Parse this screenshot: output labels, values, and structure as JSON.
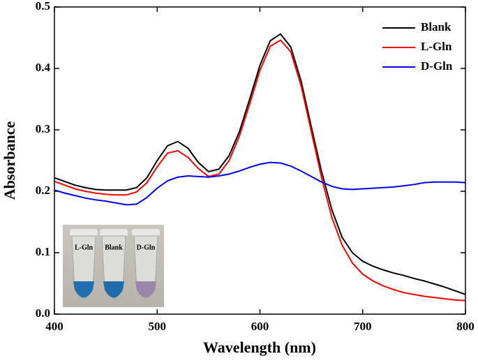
{
  "chart_data": {
    "type": "line",
    "xlabel": "Wavelength (nm)",
    "ylabel": "Absorbance",
    "x": [
      400,
      410,
      420,
      430,
      440,
      450,
      460,
      470,
      480,
      490,
      500,
      510,
      520,
      530,
      540,
      550,
      560,
      570,
      580,
      590,
      600,
      610,
      620,
      630,
      640,
      650,
      660,
      670,
      680,
      690,
      700,
      710,
      720,
      730,
      740,
      750,
      760,
      770,
      780,
      790,
      800
    ],
    "series": [
      {
        "name": "Blank",
        "color": "#000000",
        "values": [
          0.222,
          0.216,
          0.21,
          0.206,
          0.203,
          0.202,
          0.202,
          0.202,
          0.206,
          0.222,
          0.25,
          0.274,
          0.281,
          0.27,
          0.247,
          0.232,
          0.236,
          0.258,
          0.297,
          0.35,
          0.405,
          0.445,
          0.456,
          0.435,
          0.38,
          0.305,
          0.232,
          0.17,
          0.125,
          0.1,
          0.086,
          0.078,
          0.072,
          0.067,
          0.063,
          0.058,
          0.054,
          0.049,
          0.044,
          0.038,
          0.032
        ]
      },
      {
        "name": "L-Gln",
        "color": "#ff0000",
        "values": [
          0.216,
          0.21,
          0.204,
          0.2,
          0.197,
          0.195,
          0.194,
          0.194,
          0.199,
          0.214,
          0.24,
          0.262,
          0.266,
          0.255,
          0.237,
          0.224,
          0.228,
          0.25,
          0.29,
          0.342,
          0.397,
          0.436,
          0.446,
          0.427,
          0.372,
          0.297,
          0.222,
          0.157,
          0.112,
          0.083,
          0.065,
          0.054,
          0.046,
          0.04,
          0.035,
          0.032,
          0.029,
          0.027,
          0.025,
          0.023,
          0.022
        ]
      },
      {
        "name": "D-Gln",
        "color": "#0000ff",
        "values": [
          0.202,
          0.197,
          0.193,
          0.189,
          0.186,
          0.184,
          0.181,
          0.178,
          0.179,
          0.19,
          0.205,
          0.217,
          0.223,
          0.225,
          0.224,
          0.223,
          0.225,
          0.228,
          0.233,
          0.239,
          0.244,
          0.247,
          0.246,
          0.241,
          0.233,
          0.224,
          0.215,
          0.208,
          0.204,
          0.203,
          0.204,
          0.205,
          0.206,
          0.207,
          0.209,
          0.211,
          0.214,
          0.215,
          0.215,
          0.215,
          0.214
        ]
      }
    ],
    "xlim": [
      400,
      800
    ],
    "xticks": [
      400,
      500,
      600,
      700,
      800
    ],
    "ylim": [
      0,
      0.5
    ],
    "yticks": [
      {
        "value": 0,
        "label": "0.0"
      },
      0.1,
      0.2,
      0.3,
      0.4,
      0.5
    ],
    "legend": "upper right",
    "inset": {
      "labels": [
        "L-Gln",
        "Blank",
        "D-Gln"
      ]
    }
  }
}
